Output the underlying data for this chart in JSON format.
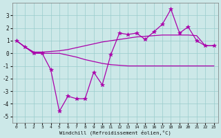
{
  "bg_color": "#cce8e8",
  "line_color": "#aa00aa",
  "grid_color": "#99cccc",
  "xlabel": "Windchill (Refroidissement éolien,°C)",
  "x": [
    0,
    1,
    2,
    3,
    4,
    5,
    6,
    7,
    8,
    9,
    10,
    11,
    12,
    13,
    14,
    15,
    16,
    17,
    18,
    19,
    20,
    21,
    22,
    23
  ],
  "y_zigzag": [
    1.0,
    0.5,
    0.0,
    0.0,
    -1.3,
    -4.6,
    -3.4,
    -3.6,
    -3.6,
    -1.5,
    -2.5,
    -0.1,
    1.6,
    1.5,
    1.6,
    1.1,
    1.7,
    2.3,
    3.5,
    1.6,
    2.1,
    1.0,
    0.6,
    0.6
  ],
  "y_upper": [
    1.0,
    0.5,
    0.1,
    0.1,
    0.15,
    0.2,
    0.3,
    0.45,
    0.6,
    0.75,
    0.9,
    1.0,
    1.1,
    1.2,
    1.3,
    1.35,
    1.4,
    1.45,
    1.45,
    1.45,
    1.45,
    1.4,
    0.6,
    0.6
  ],
  "y_lower": [
    1.0,
    0.5,
    0.1,
    0.0,
    0.0,
    0.0,
    -0.15,
    -0.3,
    -0.5,
    -0.65,
    -0.8,
    -0.9,
    -0.95,
    -1.0,
    -1.0,
    -1.0,
    -1.0,
    -1.0,
    -1.0,
    -1.0,
    -1.0,
    -1.0,
    -1.0,
    -1.0
  ],
  "ylim": [
    -5.5,
    4.0
  ],
  "yticks": [
    -5,
    -4,
    -3,
    -2,
    -1,
    0,
    1,
    2,
    3
  ],
  "xticks": [
    0,
    1,
    2,
    3,
    4,
    5,
    6,
    7,
    8,
    9,
    10,
    11,
    12,
    13,
    14,
    15,
    16,
    17,
    18,
    19,
    20,
    21,
    22,
    23
  ]
}
